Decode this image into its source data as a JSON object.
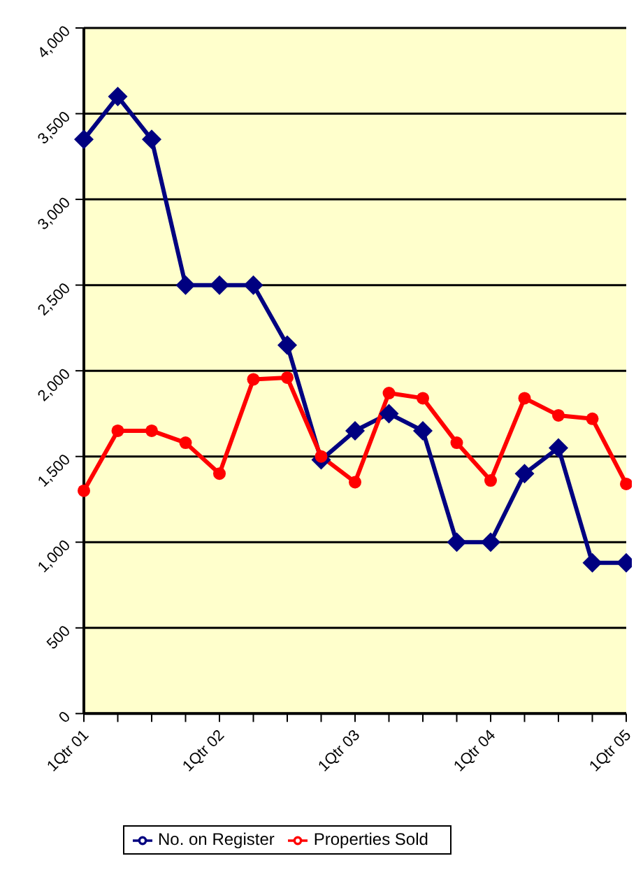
{
  "chart_data": {
    "type": "line",
    "categories": [
      "1Qtr 01",
      null,
      null,
      null,
      "1Qtr 02",
      null,
      null,
      null,
      "1Qtr 03",
      null,
      null,
      null,
      "1Qtr 04",
      null,
      null,
      null,
      "1Qtr 05"
    ],
    "series": [
      {
        "name": "No. on Register",
        "color": "#000080",
        "marker": "diamond",
        "values": [
          3350,
          3600,
          3350,
          2500,
          2500,
          2500,
          2150,
          1480,
          1650,
          1750,
          1650,
          1000,
          1000,
          1400,
          1550,
          880,
          880
        ]
      },
      {
        "name": "Properties Sold",
        "color": "#ff0000",
        "marker": "circle",
        "values": [
          1300,
          1650,
          1650,
          1580,
          1400,
          1950,
          1960,
          1500,
          1350,
          1870,
          1840,
          1580,
          1360,
          1840,
          1740,
          1720,
          1340
        ]
      }
    ],
    "ylim": [
      0,
      4000
    ],
    "yticks": [
      0,
      {
        "value": 500,
        "label": "500"
      },
      {
        "value": 1000,
        "label": "1,000"
      },
      {
        "value": 1500,
        "label": "1,500"
      },
      {
        "value": 2000,
        "label": "2,000"
      },
      {
        "value": 2500,
        "label": "2,500"
      },
      {
        "value": 3000,
        "label": "3,000"
      },
      {
        "value": 3500,
        "label": "3,500"
      },
      {
        "value": 4000,
        "label": "4,000"
      }
    ],
    "grid": "y",
    "legend": "bottom",
    "line_style": "solid"
  }
}
